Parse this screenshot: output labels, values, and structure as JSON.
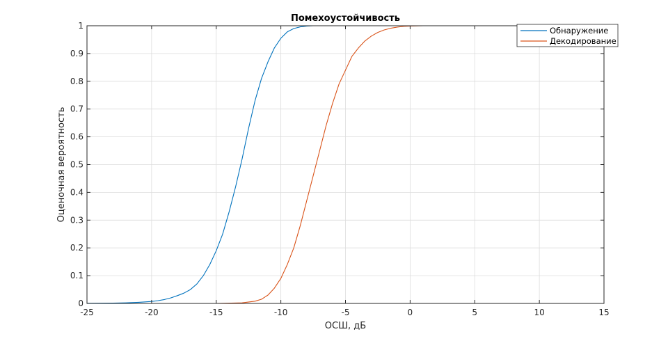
{
  "chart_data": {
    "type": "line",
    "title": "Помехоустойчивость",
    "xlabel": "ОСШ, дБ",
    "ylabel": "Оценочная вероятность",
    "xlim": [
      -25,
      15
    ],
    "ylim": [
      0,
      1
    ],
    "x_ticks": [
      -25,
      -20,
      -15,
      -10,
      -5,
      0,
      5,
      10,
      15
    ],
    "y_ticks": [
      0,
      0.1,
      0.2,
      0.3,
      0.4,
      0.5,
      0.6,
      0.7,
      0.8,
      0.9,
      1
    ],
    "grid": true,
    "legend_position": "top-right",
    "series": [
      {
        "name": "Обнаружение",
        "color": "#0072BD",
        "x": [
          -25,
          -23,
          -22,
          -21,
          -20,
          -19.5,
          -19,
          -18.5,
          -18,
          -17.5,
          -17,
          -16.5,
          -16,
          -15.5,
          -15,
          -14.5,
          -14,
          -13.5,
          -13,
          -12.5,
          -12,
          -11.5,
          -11,
          -10.5,
          -10,
          -9.5,
          -9,
          -8.5,
          -8,
          -7.5,
          -7,
          -6,
          -5,
          -3,
          0,
          5,
          10,
          15
        ],
        "y": [
          0.0005,
          0.001,
          0.002,
          0.004,
          0.007,
          0.01,
          0.014,
          0.02,
          0.028,
          0.037,
          0.05,
          0.07,
          0.1,
          0.14,
          0.19,
          0.25,
          0.33,
          0.42,
          0.52,
          0.63,
          0.73,
          0.81,
          0.87,
          0.92,
          0.955,
          0.978,
          0.99,
          0.996,
          0.999,
          1,
          1,
          1,
          1,
          1,
          1,
          1,
          1,
          1
        ]
      },
      {
        "name": "Декодирование",
        "color": "#D95319",
        "x": [
          -25,
          -15,
          -13,
          -12,
          -11.5,
          -11,
          -10.5,
          -10,
          -9.5,
          -9,
          -8.5,
          -8,
          -7.5,
          -7,
          -6.5,
          -6,
          -5.5,
          -5,
          -4.5,
          -4,
          -3.5,
          -3,
          -2.5,
          -2,
          -1.5,
          -1,
          -0.5,
          0,
          1,
          3,
          5,
          10,
          15
        ],
        "y": [
          0,
          0,
          0.002,
          0.008,
          0.015,
          0.03,
          0.055,
          0.09,
          0.14,
          0.2,
          0.28,
          0.37,
          0.46,
          0.55,
          0.64,
          0.72,
          0.79,
          0.84,
          0.89,
          0.92,
          0.945,
          0.963,
          0.976,
          0.985,
          0.991,
          0.995,
          0.998,
          0.999,
          1,
          1,
          1,
          1,
          1
        ]
      }
    ]
  }
}
